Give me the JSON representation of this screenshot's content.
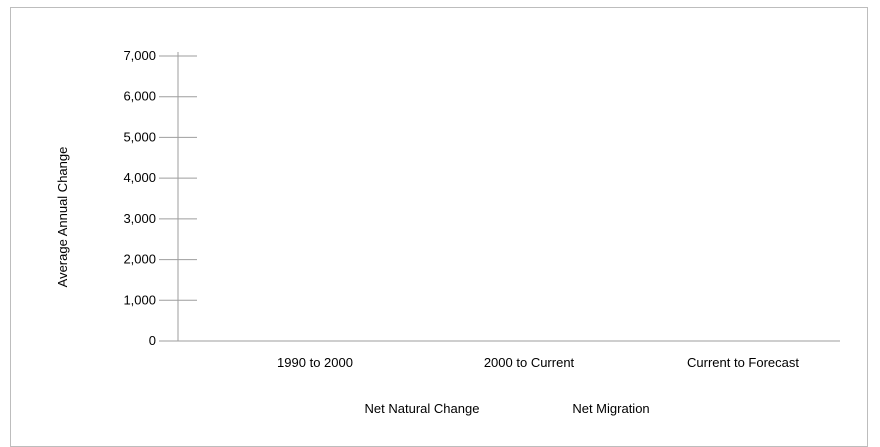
{
  "chart_data": {
    "type": "bar",
    "title": "",
    "xlabel": "",
    "ylabel": "Average Annual Change",
    "categories": [
      "1990 to 2000",
      "2000 to Current",
      "Current to Forecast"
    ],
    "series": [
      {
        "name": "Net Natural Change",
        "values": [
          0,
          0,
          0
        ]
      },
      {
        "name": "Net Migration",
        "values": [
          0,
          0,
          0
        ]
      }
    ],
    "ylim": [
      0,
      7000
    ],
    "yticks": [
      0,
      1000,
      2000,
      3000,
      4000,
      5000,
      6000,
      7000
    ],
    "ytick_labels": [
      "0",
      "1,000",
      "2,000",
      "3,000",
      "4,000",
      "5,000",
      "6,000",
      "7,000"
    ],
    "grid": false,
    "legend_position": "bottom"
  },
  "colors": {
    "axis": "#9e9e9e",
    "frame": "#bdbdbd",
    "text": "#000000"
  }
}
